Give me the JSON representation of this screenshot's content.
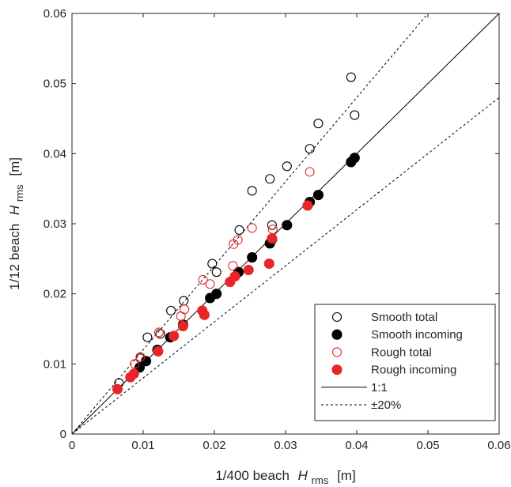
{
  "chart_data": {
    "type": "scatter",
    "xlabel_prefix": "1/400 beach",
    "xlabel_symbol": "H",
    "xlabel_sub": "rms",
    "xlabel_unit": "[m]",
    "ylabel_prefix": "1/12 beach",
    "ylabel_symbol": "H",
    "ylabel_sub": "rms",
    "ylabel_unit": "[m]",
    "xlim": [
      0,
      0.06
    ],
    "ylim": [
      0,
      0.06
    ],
    "xticks": [
      0,
      0.01,
      0.02,
      0.03,
      0.04,
      0.05,
      0.06
    ],
    "yticks": [
      0,
      0.01,
      0.02,
      0.03,
      0.04,
      0.05,
      0.06
    ],
    "xtick_labels": [
      "0",
      "0.01",
      "0.02",
      "0.03",
      "0.04",
      "0.05",
      "0.06"
    ],
    "ytick_labels": [
      "0",
      "0.01",
      "0.02",
      "0.03",
      "0.04",
      "0.05",
      "0.06"
    ],
    "grid": false,
    "legend_position": "bottom-right",
    "series": [
      {
        "name": "Smooth total",
        "color": "#000000",
        "marker": "open-circle",
        "points": [
          [
            0.0066,
            0.0073
          ],
          [
            0.0096,
            0.0108
          ],
          [
            0.0106,
            0.0138
          ],
          [
            0.0124,
            0.0143
          ],
          [
            0.0139,
            0.0176
          ],
          [
            0.0157,
            0.019
          ],
          [
            0.0197,
            0.0243
          ],
          [
            0.0203,
            0.0231
          ],
          [
            0.0235,
            0.0291
          ],
          [
            0.0253,
            0.0347
          ],
          [
            0.0278,
            0.0364
          ],
          [
            0.0281,
            0.0298
          ],
          [
            0.0302,
            0.0382
          ],
          [
            0.0334,
            0.0407
          ],
          [
            0.0346,
            0.0443
          ],
          [
            0.0392,
            0.0509
          ],
          [
            0.0397,
            0.0455
          ]
        ]
      },
      {
        "name": "Smooth incoming",
        "color": "#000000",
        "marker": "filled-circle",
        "points": [
          [
            0.0095,
            0.0095
          ],
          [
            0.0104,
            0.0104
          ],
          [
            0.012,
            0.012
          ],
          [
            0.0138,
            0.0138
          ],
          [
            0.0156,
            0.0156
          ],
          [
            0.0194,
            0.0194
          ],
          [
            0.0203,
            0.02
          ],
          [
            0.0234,
            0.0231
          ],
          [
            0.0253,
            0.0252
          ],
          [
            0.0278,
            0.0272
          ],
          [
            0.0281,
            0.0278
          ],
          [
            0.0302,
            0.0298
          ],
          [
            0.0334,
            0.0331
          ],
          [
            0.0346,
            0.0341
          ],
          [
            0.0392,
            0.0388
          ],
          [
            0.0397,
            0.0394
          ]
        ]
      },
      {
        "name": "Rough total",
        "color": "#e8262a",
        "marker": "open-circle",
        "points": [
          [
            0.0088,
            0.01
          ],
          [
            0.0096,
            0.011
          ],
          [
            0.0122,
            0.0145
          ],
          [
            0.0153,
            0.0168
          ],
          [
            0.0158,
            0.0178
          ],
          [
            0.0184,
            0.022
          ],
          [
            0.0194,
            0.0214
          ],
          [
            0.0226,
            0.024
          ],
          [
            0.0227,
            0.0271
          ],
          [
            0.0233,
            0.0277
          ],
          [
            0.0253,
            0.0294
          ],
          [
            0.0282,
            0.0292
          ],
          [
            0.0334,
            0.0374
          ]
        ]
      },
      {
        "name": "Rough incoming",
        "color": "#e8262a",
        "marker": "filled-circle",
        "points": [
          [
            0.0064,
            0.0064
          ],
          [
            0.0082,
            0.0081
          ],
          [
            0.0087,
            0.0086
          ],
          [
            0.0121,
            0.0118
          ],
          [
            0.0143,
            0.014
          ],
          [
            0.0156,
            0.0154
          ],
          [
            0.0183,
            0.0176
          ],
          [
            0.0186,
            0.017
          ],
          [
            0.0222,
            0.0217
          ],
          [
            0.0229,
            0.0225
          ],
          [
            0.0248,
            0.0234
          ],
          [
            0.0277,
            0.0243
          ],
          [
            0.0281,
            0.0279
          ],
          [
            0.0331,
            0.0326
          ]
        ]
      }
    ],
    "lines": [
      {
        "name": "1:1",
        "style": "solid",
        "slope": 1.0
      },
      {
        "name": "±20%",
        "style": "dashed",
        "slopes": [
          1.2,
          0.8
        ]
      }
    ]
  }
}
